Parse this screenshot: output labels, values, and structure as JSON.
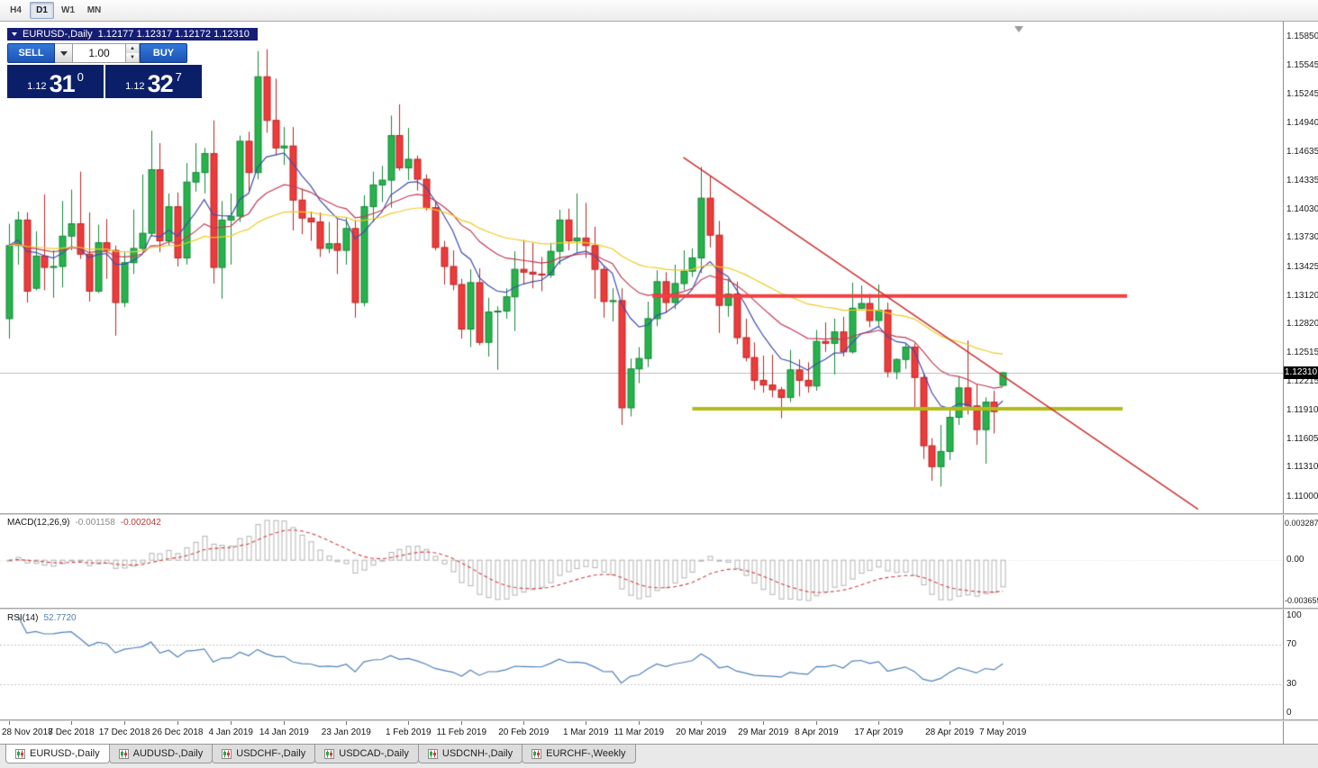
{
  "toolbar": {
    "timeframes": [
      {
        "label": "H4",
        "active": false
      },
      {
        "label": "D1",
        "active": true
      },
      {
        "label": "W1",
        "active": false
      },
      {
        "label": "MN",
        "active": false
      }
    ]
  },
  "chart_header": {
    "symbol_title": "EURUSD-,Daily",
    "ohlc": "1.12177 1.12317 1.12172 1.12310"
  },
  "trade_panel": {
    "sell_label": "SELL",
    "buy_label": "BUY",
    "volume": "1.00",
    "sell_price": {
      "prefix": "1.12",
      "big": "31",
      "sup": "0"
    },
    "buy_price": {
      "prefix": "1.12",
      "big": "32",
      "sup": "7"
    }
  },
  "price_axis": {
    "ticks": [
      "1.15850",
      "1.15545",
      "1.15245",
      "1.14940",
      "1.14635",
      "1.14335",
      "1.14030",
      "1.13730",
      "1.13425",
      "1.13120",
      "1.12820",
      "1.12515",
      "1.12215",
      "1.11910",
      "1.11605",
      "1.11310",
      "1.11000"
    ],
    "current_price": "1.12310"
  },
  "indicators": {
    "macd": {
      "name": "MACD(12,26,9)",
      "value_main": "-0.001158",
      "value_signal": "-0.002042",
      "axis_max": "0.003287",
      "axis_zero": "0.00",
      "axis_min": "-0.003659"
    },
    "rsi": {
      "name": "RSI(14)",
      "value": "52.7720",
      "axis": [
        "100",
        "70",
        "30",
        "0"
      ],
      "levels": [
        70,
        30
      ]
    }
  },
  "date_axis": {
    "labels": [
      {
        "index": 0,
        "label": "28 Nov 2018"
      },
      {
        "index": 7,
        "label": "7 Dec 2018"
      },
      {
        "index": 13,
        "label": "17 Dec 2018"
      },
      {
        "index": 19,
        "label": "26 Dec 2018"
      },
      {
        "index": 25,
        "label": "4 Jan 2019"
      },
      {
        "index": 31,
        "label": "14 Jan 2019"
      },
      {
        "index": 38,
        "label": "23 Jan 2019"
      },
      {
        "index": 45,
        "label": "1 Feb 2019"
      },
      {
        "index": 51,
        "label": "11 Feb 2019"
      },
      {
        "index": 58,
        "label": "20 Feb 2019"
      },
      {
        "index": 65,
        "label": "1 Mar 2019"
      },
      {
        "index": 71,
        "label": "11 Mar 2019"
      },
      {
        "index": 78,
        "label": "20 Mar 2019"
      },
      {
        "index": 85,
        "label": "29 Mar 2019"
      },
      {
        "index": 91,
        "label": "8 Apr 2019"
      },
      {
        "index": 98,
        "label": "17 Apr 2019"
      },
      {
        "index": 106,
        "label": "28 Apr 2019"
      },
      {
        "index": 112,
        "label": "7 May 2019"
      }
    ]
  },
  "tabs": [
    {
      "label": "EURUSD-,Daily",
      "active": true
    },
    {
      "label": "AUDUSD-,Daily",
      "active": false
    },
    {
      "label": "USDCHF-,Daily",
      "active": false
    },
    {
      "label": "USDCAD-,Daily",
      "active": false
    },
    {
      "label": "USDCNH-,Daily",
      "active": false
    },
    {
      "label": "EURCHF-,Weekly",
      "active": false
    }
  ],
  "chart_data": {
    "type": "candlestick",
    "symbol": "EURUSD-",
    "timeframe": "Daily",
    "ohlc_current": {
      "open": 1.12177,
      "high": 1.12317,
      "low": 1.12172,
      "close": 1.1231
    },
    "last_close": 1.1231,
    "ylim": [
      1.109,
      1.1592
    ],
    "ma_periods": {
      "fast": 8,
      "mid": 20,
      "slow": 45
    },
    "annotations": {
      "resistance": {
        "price": 1.1312,
        "from_index": 72.5,
        "to_index": 126
      },
      "support": {
        "price": 1.1193,
        "from_index": 77,
        "to_index": 125.5
      },
      "trendline": {
        "from_index": 76,
        "from_price": 1.1458,
        "to_index": 134,
        "to_price": 1.1087
      }
    },
    "colors": {
      "bull": "#27b24c",
      "bull_border": "#148838",
      "bear": "#ec3b3b",
      "bear_border": "#bf2424",
      "ma_fast": "#3f4cb1",
      "ma_mid": "#c23a55",
      "ma_slow": "#eecb23",
      "resistance": "#f14040",
      "support": "#b3bc17",
      "trendline": "#d03030",
      "macd_histogram": "#b3b3b3",
      "macd_signal": "#d04343",
      "rsi": "#4f80bd",
      "current_price_line": "#bbbbbb",
      "trade_panel_bg": "#0b1f69",
      "trade_button": "#1c54b4",
      "title_bar_bg": "#161d74"
    },
    "candles": [
      [
        1.1288,
        1.1388,
        1.1267,
        1.1365
      ],
      [
        1.1365,
        1.1401,
        1.1345,
        1.1392
      ],
      [
        1.1392,
        1.14,
        1.1305,
        1.1317
      ],
      [
        1.132,
        1.138,
        1.1318,
        1.1354
      ],
      [
        1.1354,
        1.1419,
        1.1318,
        1.1342
      ],
      [
        1.1342,
        1.136,
        1.131,
        1.1343
      ],
      [
        1.1343,
        1.1412,
        1.1321,
        1.1375
      ],
      [
        1.1375,
        1.1424,
        1.136,
        1.1388
      ],
      [
        1.1388,
        1.1443,
        1.1351,
        1.1356
      ],
      [
        1.1356,
        1.14,
        1.1306,
        1.1317
      ],
      [
        1.1317,
        1.1387,
        1.1315,
        1.1368
      ],
      [
        1.1368,
        1.1393,
        1.133,
        1.136
      ],
      [
        1.136,
        1.1365,
        1.127,
        1.1305
      ],
      [
        1.1305,
        1.1358,
        1.13,
        1.1347
      ],
      [
        1.1347,
        1.1403,
        1.1335,
        1.1362
      ],
      [
        1.1362,
        1.144,
        1.136,
        1.1378
      ],
      [
        1.1378,
        1.1486,
        1.1375,
        1.1445
      ],
      [
        1.1445,
        1.1473,
        1.1358,
        1.137
      ],
      [
        1.137,
        1.142,
        1.1365,
        1.1406
      ],
      [
        1.1406,
        1.1421,
        1.1343,
        1.1352
      ],
      [
        1.1352,
        1.1452,
        1.1345,
        1.1432
      ],
      [
        1.1432,
        1.1473,
        1.1422,
        1.1442
      ],
      [
        1.1442,
        1.1468,
        1.142,
        1.1462
      ],
      [
        1.1462,
        1.1497,
        1.1325,
        1.1342
      ],
      [
        1.1342,
        1.1412,
        1.1309,
        1.1392
      ],
      [
        1.1392,
        1.142,
        1.1345,
        1.1396
      ],
      [
        1.1396,
        1.1481,
        1.139,
        1.1475
      ],
      [
        1.1475,
        1.1485,
        1.1422,
        1.1442
      ],
      [
        1.1442,
        1.157,
        1.1435,
        1.1543
      ],
      [
        1.1543,
        1.1572,
        1.1484,
        1.1497
      ],
      [
        1.1497,
        1.1541,
        1.146,
        1.1468
      ],
      [
        1.1468,
        1.149,
        1.145,
        1.147
      ],
      [
        1.147,
        1.149,
        1.1381,
        1.1413
      ],
      [
        1.1413,
        1.1425,
        1.1377,
        1.1394
      ],
      [
        1.1394,
        1.1401,
        1.137,
        1.139
      ],
      [
        1.139,
        1.14,
        1.1353,
        1.1362
      ],
      [
        1.1362,
        1.139,
        1.1357,
        1.1367
      ],
      [
        1.1367,
        1.1394,
        1.1335,
        1.136
      ],
      [
        1.136,
        1.1394,
        1.1345,
        1.1383
      ],
      [
        1.1383,
        1.1392,
        1.1289,
        1.1305
      ],
      [
        1.1305,
        1.1418,
        1.1301,
        1.1406
      ],
      [
        1.1406,
        1.1443,
        1.139,
        1.1429
      ],
      [
        1.1429,
        1.1449,
        1.1411,
        1.1434
      ],
      [
        1.1434,
        1.1502,
        1.1405,
        1.1481
      ],
      [
        1.1481,
        1.1514,
        1.1444,
        1.1447
      ],
      [
        1.1447,
        1.1489,
        1.1434,
        1.1456
      ],
      [
        1.1456,
        1.146,
        1.1423,
        1.1435
      ],
      [
        1.1435,
        1.144,
        1.1402,
        1.1405
      ],
      [
        1.1405,
        1.141,
        1.136,
        1.1363
      ],
      [
        1.1363,
        1.137,
        1.1324,
        1.1343
      ],
      [
        1.1343,
        1.136,
        1.1318,
        1.1324
      ],
      [
        1.1324,
        1.133,
        1.1267,
        1.1277
      ],
      [
        1.1277,
        1.134,
        1.1258,
        1.1326
      ],
      [
        1.1326,
        1.1341,
        1.126,
        1.1263
      ],
      [
        1.1263,
        1.131,
        1.1248,
        1.1295
      ],
      [
        1.1295,
        1.1301,
        1.1234,
        1.1296
      ],
      [
        1.1296,
        1.132,
        1.1288,
        1.1311
      ],
      [
        1.1311,
        1.1359,
        1.1275,
        1.134
      ],
      [
        1.134,
        1.1371,
        1.1324,
        1.1337
      ],
      [
        1.1337,
        1.1368,
        1.132,
        1.1335
      ],
      [
        1.1335,
        1.1353,
        1.1317,
        1.1334
      ],
      [
        1.1334,
        1.1368,
        1.1331,
        1.1359
      ],
      [
        1.1359,
        1.1403,
        1.1345,
        1.1392
      ],
      [
        1.1392,
        1.1404,
        1.136,
        1.137
      ],
      [
        1.137,
        1.142,
        1.1358,
        1.1373
      ],
      [
        1.1373,
        1.141,
        1.1352,
        1.1365
      ],
      [
        1.1365,
        1.1385,
        1.1309,
        1.134
      ],
      [
        1.134,
        1.1344,
        1.1289,
        1.1306
      ],
      [
        1.1306,
        1.132,
        1.1285,
        1.1307
      ],
      [
        1.1307,
        1.132,
        1.1176,
        1.1194
      ],
      [
        1.1194,
        1.1246,
        1.1185,
        1.1235
      ],
      [
        1.1235,
        1.1258,
        1.122,
        1.1246
      ],
      [
        1.1246,
        1.1306,
        1.1237,
        1.1288
      ],
      [
        1.1288,
        1.1339,
        1.128,
        1.1327
      ],
      [
        1.1327,
        1.1337,
        1.1294,
        1.1305
      ],
      [
        1.1305,
        1.1345,
        1.1298,
        1.1325
      ],
      [
        1.1325,
        1.136,
        1.1318,
        1.1338
      ],
      [
        1.1338,
        1.1362,
        1.1332,
        1.1352
      ],
      [
        1.1352,
        1.1448,
        1.1336,
        1.1415
      ],
      [
        1.1415,
        1.1438,
        1.1363,
        1.1376
      ],
      [
        1.1376,
        1.1391,
        1.1273,
        1.1302
      ],
      [
        1.1302,
        1.133,
        1.129,
        1.1314
      ],
      [
        1.1314,
        1.1327,
        1.1261,
        1.1268
      ],
      [
        1.1268,
        1.1288,
        1.1243,
        1.1247
      ],
      [
        1.1247,
        1.1263,
        1.1213,
        1.1223
      ],
      [
        1.1223,
        1.1249,
        1.121,
        1.1218
      ],
      [
        1.1218,
        1.125,
        1.1205,
        1.1213
      ],
      [
        1.1213,
        1.1216,
        1.1183,
        1.1205
      ],
      [
        1.1205,
        1.1255,
        1.12,
        1.1234
      ],
      [
        1.1234,
        1.1245,
        1.1206,
        1.1223
      ],
      [
        1.1223,
        1.1242,
        1.121,
        1.1217
      ],
      [
        1.1217,
        1.1276,
        1.1212,
        1.1264
      ],
      [
        1.1264,
        1.1284,
        1.1253,
        1.1262
      ],
      [
        1.1262,
        1.1288,
        1.1229,
        1.1274
      ],
      [
        1.1274,
        1.129,
        1.1248,
        1.1253
      ],
      [
        1.1253,
        1.1326,
        1.1251,
        1.1299
      ],
      [
        1.1299,
        1.1323,
        1.1298,
        1.1304
      ],
      [
        1.1304,
        1.1314,
        1.1279,
        1.1286
      ],
      [
        1.1286,
        1.1324,
        1.128,
        1.1297
      ],
      [
        1.1297,
        1.1305,
        1.1226,
        1.1232
      ],
      [
        1.1232,
        1.1246,
        1.1224,
        1.1245
      ],
      [
        1.1245,
        1.1262,
        1.1235,
        1.1258
      ],
      [
        1.1258,
        1.1262,
        1.1192,
        1.1226
      ],
      [
        1.1226,
        1.123,
        1.114,
        1.1154
      ],
      [
        1.1154,
        1.1162,
        1.1117,
        1.1132
      ],
      [
        1.1132,
        1.1176,
        1.1111,
        1.1148
      ],
      [
        1.1148,
        1.1192,
        1.1139,
        1.1184
      ],
      [
        1.1184,
        1.1227,
        1.1176,
        1.1215
      ],
      [
        1.1215,
        1.1265,
        1.1187,
        1.1196
      ],
      [
        1.1196,
        1.1219,
        1.1155,
        1.1171
      ],
      [
        1.1171,
        1.1205,
        1.1135,
        1.12
      ],
      [
        1.12,
        1.1212,
        1.1167,
        1.119
      ],
      [
        1.12177,
        1.12317,
        1.12172,
        1.1231
      ]
    ]
  }
}
